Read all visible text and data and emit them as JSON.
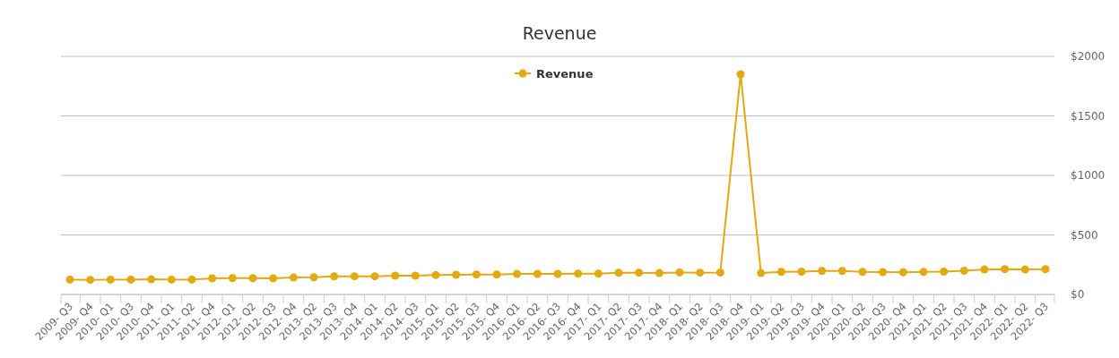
{
  "chart_data": {
    "type": "line",
    "title": "Revenue",
    "categories": [
      "2009- Q3",
      "2009- Q4",
      "2010- Q1",
      "2010- Q3",
      "2010- Q4",
      "2011- Q1",
      "2011- Q2",
      "2011- Q4",
      "2012- Q1",
      "2012- Q2",
      "2012- Q3",
      "2012- Q4",
      "2013- Q2",
      "2013- Q3",
      "2013- Q4",
      "2014- Q1",
      "2014- Q2",
      "2014- Q3",
      "2015- Q1",
      "2015- Q2",
      "2015- Q3",
      "2015- Q4",
      "2016- Q1",
      "2016- Q2",
      "2016- Q3",
      "2016- Q4",
      "2017- Q1",
      "2017- Q2",
      "2017- Q3",
      "2017- Q4",
      "2018- Q1",
      "2018- Q2",
      "2018- Q3",
      "2018- Q4",
      "2019- Q1",
      "2019- Q2",
      "2019- Q3",
      "2019- Q4",
      "2020- Q1",
      "2020- Q2",
      "2020- Q3",
      "2020- Q4",
      "2021- Q1",
      "2021- Q2",
      "2021- Q3",
      "2021- Q4",
      "2022- Q1",
      "2022- Q2",
      "2022- Q3"
    ],
    "series": [
      {
        "name": "Revenue",
        "color": "#e3a912",
        "values": [
          125,
          123,
          125,
          125,
          127,
          125,
          125,
          135,
          137,
          137,
          135,
          142,
          145,
          152,
          153,
          153,
          158,
          158,
          163,
          165,
          168,
          167,
          172,
          173,
          173,
          175,
          175,
          182,
          183,
          180,
          185,
          183,
          185,
          1850,
          180,
          190,
          192,
          197,
          197,
          190,
          188,
          187,
          190,
          192,
          200,
          210,
          212,
          210,
          212
        ]
      }
    ],
    "ylim": [
      0,
      2000
    ],
    "yticks": [
      {
        "value": 0,
        "label": "$0"
      },
      {
        "value": 500,
        "label": "$500"
      },
      {
        "value": 1000,
        "label": "$1000"
      },
      {
        "value": 1500,
        "label": "$1500"
      },
      {
        "value": 2000,
        "label": "$2000"
      }
    ],
    "grid": "y",
    "legend": "top",
    "marker": "circle",
    "line_style": "solid"
  }
}
